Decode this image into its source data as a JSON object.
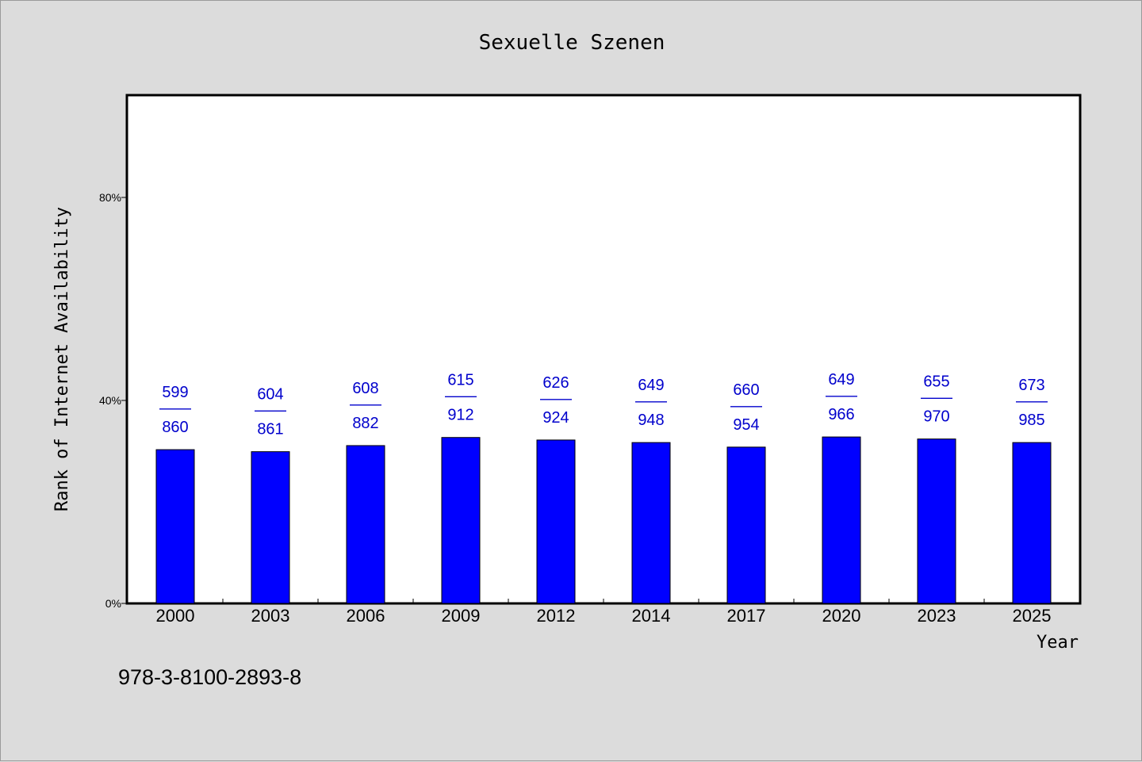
{
  "chart_data": {
    "type": "bar",
    "title": "Sexuelle Szenen",
    "xlabel": "Year",
    "ylabel": "Rank of Internet Availability",
    "categories": [
      "2000",
      "2003",
      "2006",
      "2009",
      "2012",
      "2014",
      "2017",
      "2020",
      "2023",
      "2025"
    ],
    "values": [
      30.3,
      29.9,
      31.1,
      32.7,
      32.2,
      31.7,
      30.8,
      32.8,
      32.4,
      31.7
    ],
    "value_unit": "%",
    "ylim": [
      0,
      100
    ],
    "yticks": [
      0,
      40,
      80
    ],
    "ytick_labels": [
      "0%",
      "40%",
      "80%"
    ],
    "data_labels": [
      {
        "top": "599",
        "sep": "——",
        "bottom": "860"
      },
      {
        "top": "604",
        "sep": "——",
        "bottom": "861"
      },
      {
        "top": "608",
        "sep": "——",
        "bottom": "882"
      },
      {
        "top": "615",
        "sep": "——",
        "bottom": "912"
      },
      {
        "top": "626",
        "sep": "——",
        "bottom": "924"
      },
      {
        "top": "649",
        "sep": "——",
        "bottom": "948"
      },
      {
        "top": "660",
        "sep": "——",
        "bottom": "954"
      },
      {
        "top": "649",
        "sep": "——",
        "bottom": "966"
      },
      {
        "top": "655",
        "sep": "——",
        "bottom": "970"
      },
      {
        "top": "673",
        "sep": "——",
        "bottom": "985"
      }
    ],
    "grid": false,
    "colors": {
      "bar": "#0000ff",
      "label": "#0000cc",
      "plot_background": "#ffffff",
      "figure_background": "#dcdcdc"
    }
  },
  "footer": {
    "isbn": "978-3-8100-2893-8"
  }
}
